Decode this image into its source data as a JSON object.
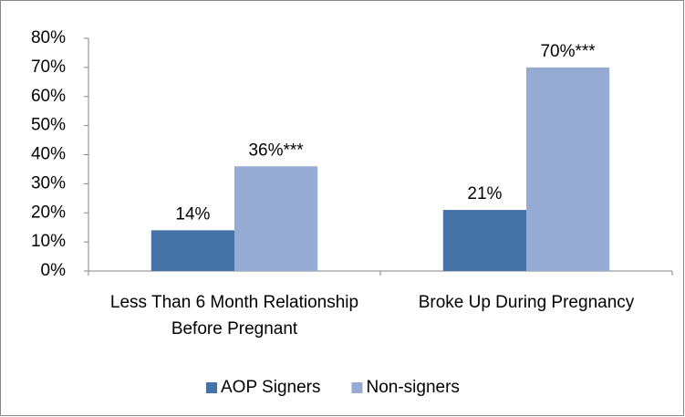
{
  "chart_data": {
    "type": "bar",
    "categories": [
      "Less Than 6 Month Relationship Before Pregnant",
      "Broke Up During Pregnancy"
    ],
    "series": [
      {
        "name": "AOP Signers",
        "color": "#4572a7",
        "values": [
          14,
          21
        ],
        "value_labels": [
          "14%",
          "21%"
        ]
      },
      {
        "name": "Non-signers",
        "color": "#95abd4",
        "values": [
          36,
          70
        ],
        "value_labels": [
          "36%***",
          "70%***"
        ]
      }
    ],
    "ylim": [
      0,
      80
    ],
    "yticks": [
      {
        "value": 0,
        "label": "0%"
      },
      {
        "value": 10,
        "label": "10%"
      },
      {
        "value": 20,
        "label": "20%"
      },
      {
        "value": 30,
        "label": "30%"
      },
      {
        "value": 40,
        "label": "40%"
      },
      {
        "value": 50,
        "label": "50%"
      },
      {
        "value": 60,
        "label": "60%"
      },
      {
        "value": 70,
        "label": "70%"
      },
      {
        "value": 80,
        "label": "80%"
      }
    ],
    "legend": "bottom"
  }
}
